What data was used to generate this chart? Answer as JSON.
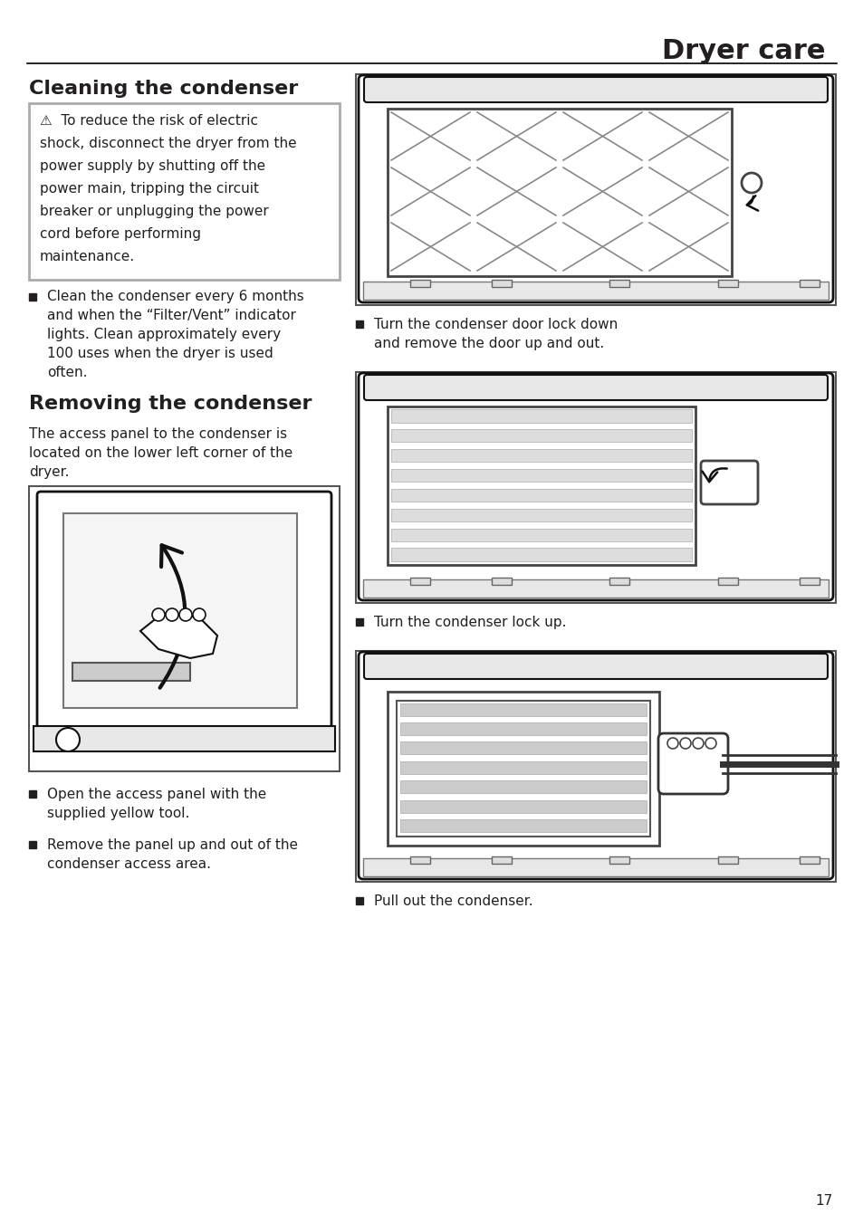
{
  "page_title": "Dryer care",
  "section1_title": "Cleaning the condenser",
  "warn_lines": [
    "⚠  To reduce the risk of electric",
    "shock, disconnect the dryer from the",
    "power supply by shutting off the",
    "power main, tripping the circuit",
    "breaker or unplugging the power",
    "cord before performing",
    "maintenance."
  ],
  "bullet1_lines": [
    "Clean the condenser every 6 months",
    "and when the “Filter/Vent” indicator",
    "lights. Clean approximately every",
    "100 uses when the dryer is used",
    "often."
  ],
  "section2_title": "Removing the condenser",
  "intro_lines": [
    "The access panel to the condenser is",
    "located on the lower left corner of the",
    "dryer."
  ],
  "bullet2_lines": [
    "Open the access panel with the",
    "supplied yellow tool."
  ],
  "bullet3_lines": [
    "Remove the panel up and out of the",
    "condenser access area."
  ],
  "right_bullet1_lines": [
    "Turn the condenser door lock down",
    "and remove the door up and out."
  ],
  "right_bullet2_lines": [
    "Turn the condenser lock up."
  ],
  "right_bullet3_lines": [
    "Pull out the condenser."
  ],
  "page_number": "17",
  "bg_color": "#ffffff",
  "text_color": "#231f20",
  "warn_border_color": "#aaaaaa",
  "header_line_color": "#000000",
  "img_border_color": "#555555",
  "img_fill_color": "#ffffff",
  "grid_line_color": "#888888",
  "light_gray": "#e8e8e8",
  "dark": "#111111"
}
